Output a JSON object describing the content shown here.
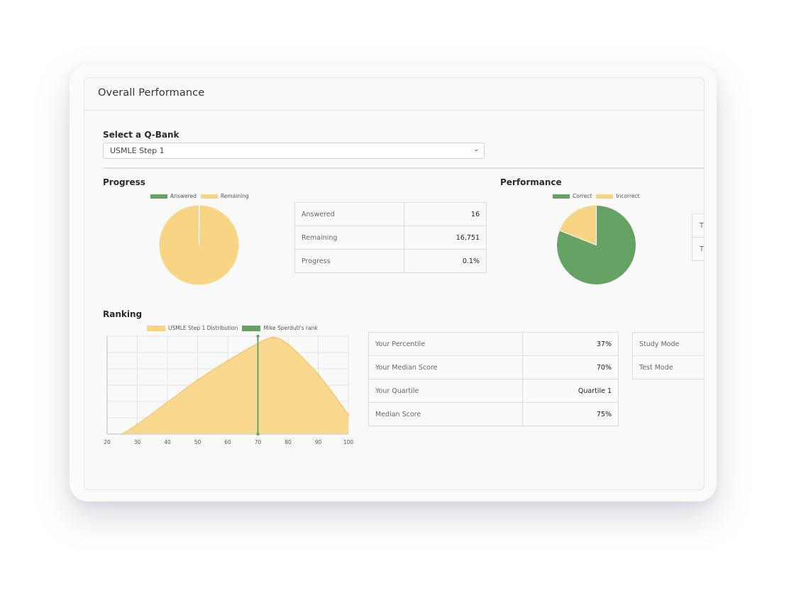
{
  "header": {
    "title": "Overall Performance"
  },
  "qbank": {
    "label": "Select a Q-Bank",
    "selected": "USMLE Step 1"
  },
  "progress": {
    "title": "Progress",
    "legend": [
      {
        "label": "Answered",
        "color": "#67a265"
      },
      {
        "label": "Remaining",
        "color": "#f8d585"
      }
    ],
    "pie": {
      "answered_fraction": 0.001
    },
    "stats": [
      {
        "label": "Answered",
        "value": "16"
      },
      {
        "label": "Remaining",
        "value": "16,751"
      },
      {
        "label": "Progress",
        "value": "0.1%"
      }
    ]
  },
  "performance": {
    "title": "Performance",
    "legend": [
      {
        "label": "Correct",
        "color": "#67a265"
      },
      {
        "label": "Incorrect",
        "color": "#f8d585"
      }
    ],
    "pie": {
      "correct_fraction": 0.81
    },
    "cut_off_rows": [
      "T",
      "T"
    ]
  },
  "ranking": {
    "title": "Ranking",
    "legend": [
      {
        "label": "USMLE Step 1 Distribution",
        "color": "#f8d585"
      },
      {
        "label": "Mike Sperduti's rank",
        "color": "#67a265"
      }
    ],
    "stats": [
      {
        "label": "Your Percentile",
        "value": "37%"
      },
      {
        "label": "Your Median Score",
        "value": "70%"
      },
      {
        "label": "Your Quartile",
        "value": "Quartile 1"
      },
      {
        "label": "Median Score",
        "value": "75%"
      }
    ],
    "modes": [
      {
        "label": "Study Mode"
      },
      {
        "label": "Test Mode"
      }
    ]
  },
  "chart_data": {
    "type": "area",
    "title": "",
    "xlabel": "",
    "ylabel": "",
    "xlim": [
      20,
      100
    ],
    "x_ticks": [
      20,
      30,
      40,
      50,
      60,
      70,
      80,
      90,
      100
    ],
    "grid": true,
    "legend_position": "top",
    "series": [
      {
        "name": "USMLE Step 1 Distribution",
        "type": "area",
        "color": "#f8d585",
        "x": [
          25,
          30,
          40,
          50,
          60,
          70,
          75,
          80,
          90,
          100
        ],
        "y": [
          0,
          0.1,
          0.33,
          0.56,
          0.76,
          0.94,
          1.0,
          0.93,
          0.62,
          0.2
        ]
      },
      {
        "name": "Mike Sperduti's rank",
        "type": "vline",
        "color": "#67a265",
        "x": 70
      }
    ]
  }
}
